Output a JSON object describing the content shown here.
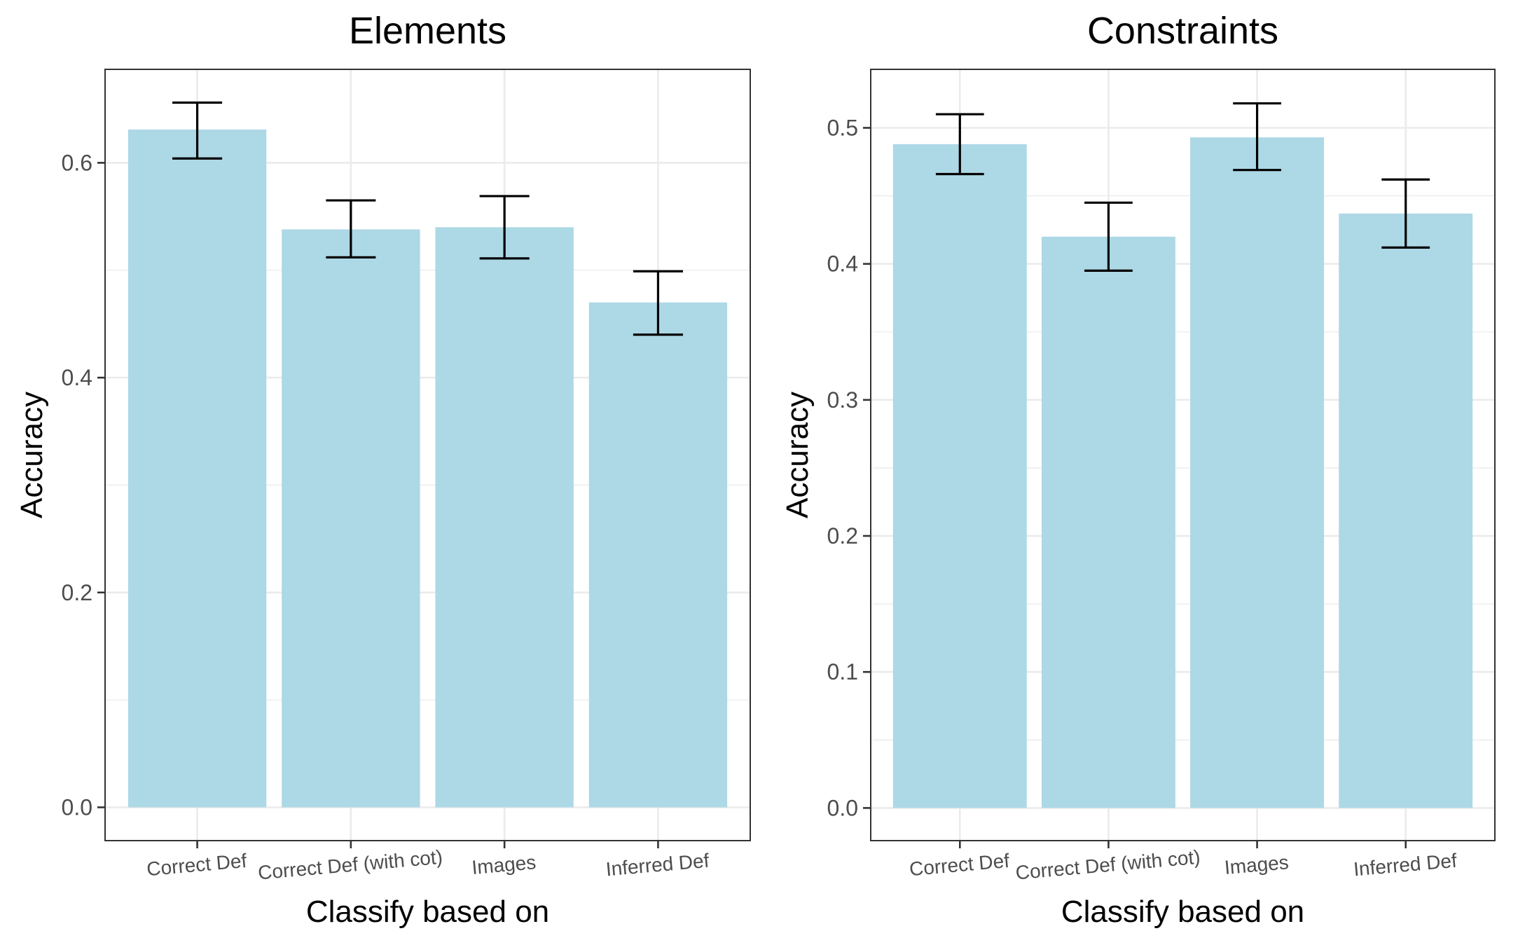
{
  "chart_data": [
    {
      "type": "bar",
      "title": "Elements",
      "xlabel": "Classify based on",
      "ylabel": "Accuracy",
      "categories": [
        "Correct Def",
        "Correct Def (with cot)",
        "Images",
        "Inferred Def"
      ],
      "values": [
        0.631,
        0.538,
        0.54,
        0.47
      ],
      "error_low": [
        0.604,
        0.512,
        0.511,
        0.44
      ],
      "error_high": [
        0.656,
        0.565,
        0.569,
        0.499
      ],
      "yticks": [
        "0.0",
        "0.2",
        "0.4",
        "0.6"
      ],
      "ylim": [
        -0.031,
        0.687
      ],
      "grid": true,
      "bar_color": "#add8e6"
    },
    {
      "type": "bar",
      "title": "Constraints",
      "xlabel": "Classify based on",
      "ylabel": "Accuracy",
      "categories": [
        "Correct Def",
        "Correct Def (with cot)",
        "Images",
        "Inferred Def"
      ],
      "values": [
        0.488,
        0.42,
        0.493,
        0.437
      ],
      "error_low": [
        0.466,
        0.395,
        0.469,
        0.412
      ],
      "error_high": [
        0.51,
        0.445,
        0.518,
        0.462
      ],
      "yticks": [
        "0.0",
        "0.1",
        "0.2",
        "0.3",
        "0.4",
        "0.5"
      ],
      "ylim": [
        -0.024,
        0.543
      ],
      "grid": true,
      "bar_color": "#add8e6"
    }
  ]
}
